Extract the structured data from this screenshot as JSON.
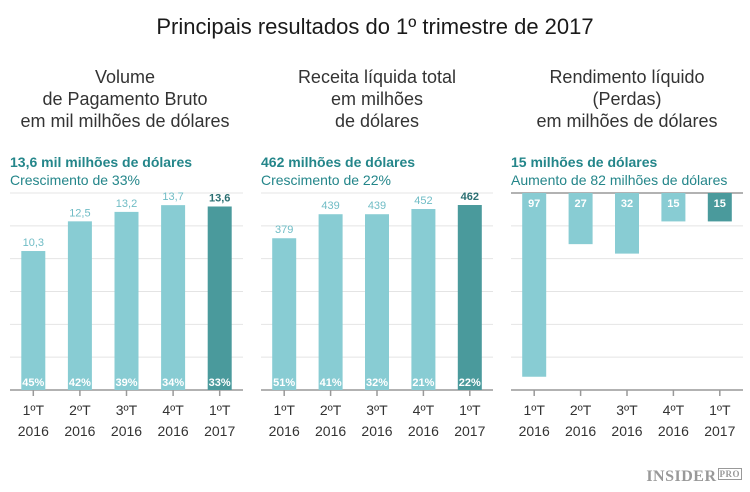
{
  "title": "Principais resultados do 1º trimestre de 2017",
  "logo": {
    "main": "INSIDER",
    "suffix": "PRO"
  },
  "colors": {
    "bar": "#88ccd3",
    "highlight": "#4a9a9c",
    "headline": "#24868a",
    "grid": "#e4e4e4",
    "axis": "#999999"
  },
  "chart_data": [
    {
      "type": "bar",
      "subtitle": [
        "Volume",
        "de Pagamento Bruto",
        "em mil milhões de dólares"
      ],
      "headline": "13,6 mil milhões de dólares",
      "note": "Crescimento de 33%",
      "categories": [
        [
          "1ºT",
          "2016"
        ],
        [
          "2ºT",
          "2016"
        ],
        [
          "3ºT",
          "2016"
        ],
        [
          "4ºT",
          "2016"
        ],
        [
          "1ºT",
          "2017"
        ]
      ],
      "values": [
        10.3,
        12.5,
        13.2,
        13.7,
        13.6
      ],
      "value_labels": [
        "10,3",
        "12,5",
        "13,2",
        "13,7",
        "13,6"
      ],
      "inner_labels": [
        "45%",
        "42%",
        "39%",
        "34%",
        "33%"
      ],
      "highlight_index": 4,
      "direction": "up",
      "ylim": [
        0,
        14.6
      ],
      "grid": true
    },
    {
      "type": "bar",
      "subtitle": [
        "Receita líquida total",
        "em milhões",
        "de dólares"
      ],
      "headline": "462 milhões de dólares",
      "note": "Crescimento de 22%",
      "categories": [
        [
          "1ºT",
          "2016"
        ],
        [
          "2ºT",
          "2016"
        ],
        [
          "3ºT",
          "2016"
        ],
        [
          "4ºT",
          "2016"
        ],
        [
          "1ºT",
          "2017"
        ]
      ],
      "values": [
        379,
        439,
        439,
        452,
        462
      ],
      "value_labels": [
        "379",
        "439",
        "439",
        "452",
        "462"
      ],
      "inner_labels": [
        "51%",
        "41%",
        "32%",
        "21%",
        "22%"
      ],
      "highlight_index": 4,
      "direction": "up",
      "ylim": [
        0,
        492
      ],
      "grid": true
    },
    {
      "type": "bar",
      "subtitle": [
        "Rendimento líquido",
        "(Perdas)",
        "em milhões de dólares"
      ],
      "headline": "15 milhões de dólares",
      "note": "Aumento de 82 milhões de dólares",
      "categories": [
        [
          "1ºT",
          "2016"
        ],
        [
          "2ºT",
          "2016"
        ],
        [
          "3ºT",
          "2016"
        ],
        [
          "4ºT",
          "2016"
        ],
        [
          "1ºT",
          "2017"
        ]
      ],
      "values": [
        97,
        27,
        32,
        15,
        15
      ],
      "value_labels": [
        "97",
        "27",
        "32",
        "15",
        "15"
      ],
      "inner_labels": [],
      "highlight_index": 4,
      "direction": "down",
      "ylim": [
        0,
        104
      ],
      "grid": true
    }
  ]
}
